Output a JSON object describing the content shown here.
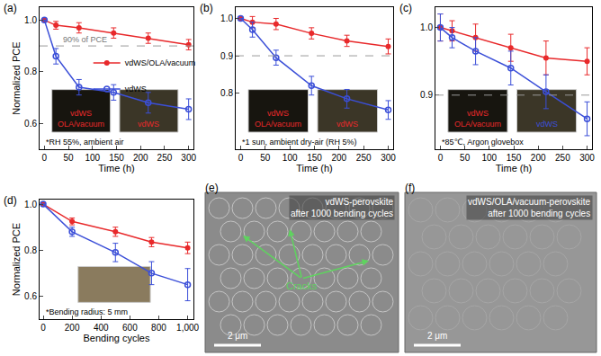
{
  "chart_data": [
    {
      "type": "line",
      "panel": "(a)",
      "xlabel": "Time (h)",
      "ylabel": "Normalized PCE",
      "x": [
        0,
        24,
        72,
        144,
        216,
        300
      ],
      "xlim": [
        -10,
        310
      ],
      "xticks": [
        0,
        50,
        100,
        150,
        200,
        250,
        300
      ],
      "ylim": [
        0.5,
        1.05
      ],
      "yticks": [
        0.6,
        0.8,
        {
          "value": 1,
          "label": "1.0"
        }
      ],
      "grid": false,
      "legend": "center",
      "reference_line": {
        "value": 0.9,
        "label": "90% of PCE"
      },
      "note": "*RH 55%, ambient air",
      "insets": [
        {
          "label": [
            "vdWS",
            "OLA/vacuum"
          ],
          "color": "#e8292b"
        },
        {
          "label": [
            "vdWS"
          ],
          "color": "#e8292b"
        }
      ],
      "series": [
        {
          "name": "vdWS/OLA/vacuum",
          "color": "#e8292b",
          "marker": "circle",
          "values": [
            1.0,
            0.98,
            0.97,
            0.95,
            0.93,
            0.905
          ],
          "errors": [
            0,
            0.015,
            0.02,
            0.02,
            0.02,
            0.02
          ]
        },
        {
          "name": "vdWS",
          "color": "#3b4fd8",
          "marker": "circle-open",
          "values": [
            1.0,
            0.86,
            0.74,
            0.72,
            0.68,
            0.655
          ],
          "errors": [
            0,
            0.03,
            0.03,
            0.03,
            0.04,
            0.04
          ]
        }
      ]
    },
    {
      "type": "line",
      "panel": "(b)",
      "xlabel": "Time (h)",
      "x": [
        0,
        24,
        72,
        144,
        216,
        300
      ],
      "xlim": [
        -10,
        310
      ],
      "xticks": [
        0,
        50,
        100,
        150,
        200,
        250,
        300
      ],
      "ylim": [
        0.65,
        1.03
      ],
      "yticks": [
        0.8,
        0.9,
        {
          "value": 1,
          "label": "1.0"
        }
      ],
      "grid": false,
      "reference_line": {
        "value": 0.9
      },
      "note": "*1 sun, ambient dry-air (RH 5%)",
      "insets": [
        {
          "label": [
            "vdWS",
            "OLA/vacuum"
          ],
          "color": "#e8292b"
        },
        {
          "label": [
            "vdWS"
          ],
          "color": "#e8292b"
        }
      ],
      "series": [
        {
          "name": "vdWS/OLA/vacuum",
          "color": "#e8292b",
          "marker": "circle",
          "values": [
            1.0,
            0.99,
            0.985,
            0.96,
            0.94,
            0.925
          ],
          "errors": [
            0,
            0.015,
            0.015,
            0.015,
            0.015,
            0.02
          ]
        },
        {
          "name": "vdWS",
          "color": "#3b4fd8",
          "marker": "circle-open",
          "values": [
            1.0,
            0.97,
            0.895,
            0.82,
            0.785,
            0.755
          ],
          "errors": [
            0,
            0.02,
            0.02,
            0.025,
            0.025,
            0.025
          ]
        }
      ]
    },
    {
      "type": "line",
      "panel": "(c)",
      "xlabel": "Time (h)",
      "x": [
        0,
        24,
        72,
        144,
        216,
        300
      ],
      "xlim": [
        -10,
        310
      ],
      "xticks": [
        0,
        50,
        100,
        150,
        200,
        250,
        300
      ],
      "ylim": [
        0.82,
        1.03
      ],
      "yticks": [
        0.9,
        {
          "value": 1,
          "label": "1.0"
        }
      ],
      "grid": false,
      "reference_line": {
        "value": 0.9
      },
      "note": "*85℃, Argon glovebox",
      "insets": [
        {
          "label": [
            "vdWS",
            "OLA/vacuum"
          ],
          "color": "#e8292b"
        },
        {
          "label": [
            "vdWS"
          ],
          "color": "#3b4fd8"
        }
      ],
      "series": [
        {
          "name": "vdWS/OLA/vacuum",
          "color": "#e8292b",
          "marker": "circle",
          "values": [
            1.0,
            0.995,
            0.985,
            0.97,
            0.955,
            0.95
          ],
          "errors": [
            0.02,
            0.015,
            0.02,
            0.02,
            0.025,
            0.02
          ]
        },
        {
          "name": "vdWS",
          "color": "#3b4fd8",
          "marker": "circle-open",
          "values": [
            1.0,
            0.985,
            0.965,
            0.94,
            0.905,
            0.865
          ],
          "errors": [
            0.02,
            0.015,
            0.02,
            0.025,
            0.025,
            0.025
          ]
        }
      ]
    },
    {
      "type": "line",
      "panel": "(d)",
      "xlabel": "Bending cycles",
      "ylabel": "Normalized PCE",
      "x": [
        0,
        200,
        500,
        750,
        1000
      ],
      "xlim": [
        -25,
        1040
      ],
      "xticks": [
        0,
        200,
        400,
        600,
        800,
        {
          "value": 1000,
          "label": "1,000"
        }
      ],
      "ylim": [
        0.5,
        1.02
      ],
      "yticks": [
        0.6,
        0.8,
        {
          "value": 1,
          "label": "1.0"
        }
      ],
      "grid": false,
      "note": "*Bending radius: 5 mm",
      "series": [
        {
          "name": "vdWS/OLA/vacuum",
          "color": "#e8292b",
          "marker": "circle",
          "values": [
            1.0,
            0.925,
            0.88,
            0.835,
            0.81
          ],
          "errors": [
            0,
            0.015,
            0.02,
            0.02,
            0.025
          ]
        },
        {
          "name": "vdWS",
          "color": "#3b4fd8",
          "marker": "circle-open",
          "values": [
            1.0,
            0.88,
            0.79,
            0.7,
            0.65
          ],
          "errors": [
            0,
            0.02,
            0.04,
            0.05,
            0.07
          ]
        }
      ]
    }
  ],
  "images": [
    {
      "panel": "(e)",
      "caption": [
        "vdWS-perovskite",
        "after 1000 bending cycles"
      ],
      "annotation": "Cracks",
      "scale_bar": "2 μm"
    },
    {
      "panel": "(f)",
      "caption": [
        "vdWS/OLA/vacuum-perovskite",
        "after 1000 bending cycles"
      ],
      "scale_bar": "2 μm"
    }
  ]
}
